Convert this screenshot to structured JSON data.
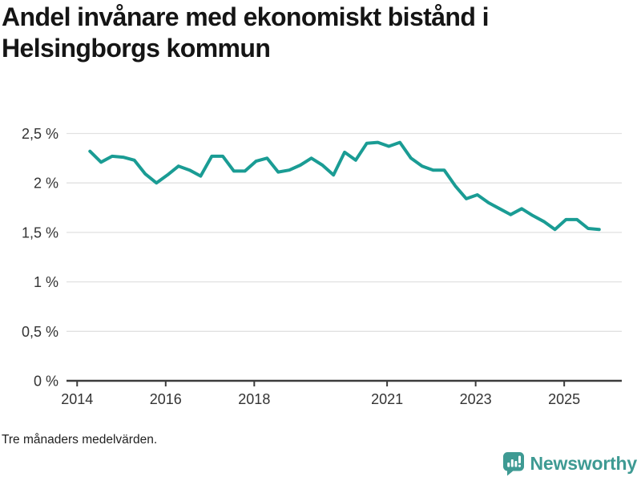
{
  "header": {
    "title": "Andel invånare med ekonomiskt bistånd i Helsingborgs kommun"
  },
  "footer": {
    "note": "Tre månaders medelvärden.",
    "brand": "Newsworthy"
  },
  "colors": {
    "line": "#1A9C94",
    "brand": "#3E9A93",
    "grid": "#E1E1E1",
    "axis": "#3C3C3C",
    "tick_text": "#333333",
    "title_text": "#151515"
  },
  "chart_data": {
    "type": "line",
    "title": "Andel invånare med ekonomiskt bistånd i Helsingborgs kommun",
    "note": "Tre månaders medelvärden.",
    "unit": "%",
    "grid": "horizontal",
    "legend": "none",
    "x_axis": {
      "range": [
        2013.76,
        2026.3
      ],
      "ticks": [
        {
          "value": 2014,
          "label": "2014"
        },
        {
          "value": 2016,
          "label": "2016"
        },
        {
          "value": 2018,
          "label": "2018"
        },
        {
          "value": 2021,
          "label": "2021"
        },
        {
          "value": 2023,
          "label": "2023"
        },
        {
          "value": 2025,
          "label": "2025"
        }
      ]
    },
    "y_axis": {
      "range": [
        0,
        2.5
      ],
      "ticks": [
        {
          "value": 0,
          "label": "0 %"
        },
        {
          "value": 0.5,
          "label": "0,5 %"
        },
        {
          "value": 1,
          "label": "1 %"
        },
        {
          "value": 1.5,
          "label": "1,5 %"
        },
        {
          "value": 2,
          "label": "2 %"
        },
        {
          "value": 2.5,
          "label": "2,5 %"
        }
      ]
    },
    "series": [
      {
        "name": "Helsingborgs kommun",
        "color": "#1A9C94",
        "points": [
          [
            2014.29,
            2.32
          ],
          [
            2014.54,
            2.21
          ],
          [
            2014.79,
            2.27
          ],
          [
            2015.04,
            2.26
          ],
          [
            2015.29,
            2.23
          ],
          [
            2015.54,
            2.09
          ],
          [
            2015.79,
            2.0
          ],
          [
            2016.04,
            2.08
          ],
          [
            2016.29,
            2.17
          ],
          [
            2016.54,
            2.13
          ],
          [
            2016.79,
            2.07
          ],
          [
            2017.04,
            2.27
          ],
          [
            2017.29,
            2.27
          ],
          [
            2017.54,
            2.12
          ],
          [
            2017.79,
            2.12
          ],
          [
            2018.04,
            2.22
          ],
          [
            2018.29,
            2.25
          ],
          [
            2018.54,
            2.11
          ],
          [
            2018.79,
            2.13
          ],
          [
            2019.04,
            2.18
          ],
          [
            2019.29,
            2.25
          ],
          [
            2019.54,
            2.18
          ],
          [
            2019.79,
            2.08
          ],
          [
            2020.04,
            2.31
          ],
          [
            2020.29,
            2.23
          ],
          [
            2020.54,
            2.4
          ],
          [
            2020.79,
            2.41
          ],
          [
            2021.04,
            2.37
          ],
          [
            2021.29,
            2.41
          ],
          [
            2021.54,
            2.25
          ],
          [
            2021.79,
            2.17
          ],
          [
            2022.04,
            2.13
          ],
          [
            2022.29,
            2.13
          ],
          [
            2022.54,
            1.97
          ],
          [
            2022.79,
            1.84
          ],
          [
            2023.04,
            1.88
          ],
          [
            2023.29,
            1.8
          ],
          [
            2023.54,
            1.74
          ],
          [
            2023.79,
            1.68
          ],
          [
            2024.04,
            1.74
          ],
          [
            2024.29,
            1.67
          ],
          [
            2024.54,
            1.61
          ],
          [
            2024.79,
            1.53
          ],
          [
            2025.04,
            1.63
          ],
          [
            2025.29,
            1.63
          ],
          [
            2025.54,
            1.54
          ],
          [
            2025.79,
            1.53
          ]
        ]
      }
    ]
  }
}
